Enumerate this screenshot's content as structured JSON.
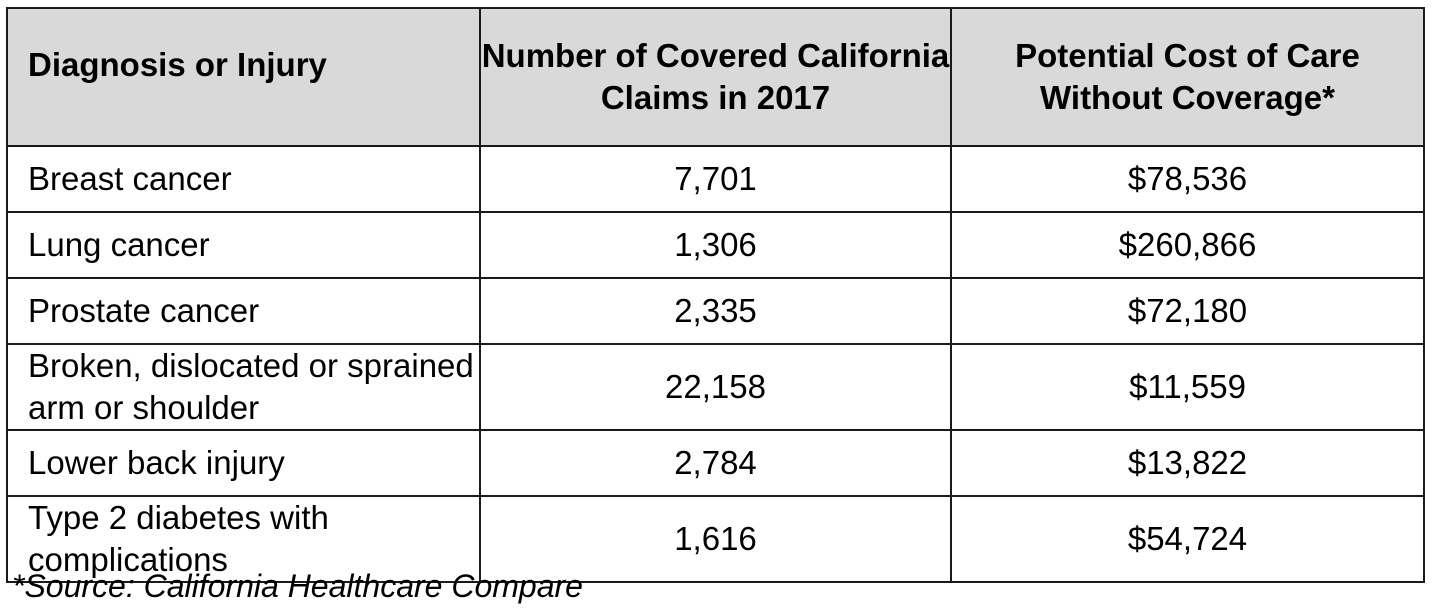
{
  "table": {
    "headers": {
      "diagnosis": "Diagnosis or Injury",
      "claims": "Number of Covered California Claims in 2017",
      "cost": "Potential Cost of Care Without Coverage*"
    },
    "rows": [
      {
        "diagnosis": "Breast cancer",
        "claims": "7,701",
        "cost": "$78,536"
      },
      {
        "diagnosis": "Lung cancer",
        "claims": "1,306",
        "cost": "$260,866"
      },
      {
        "diagnosis": "Prostate cancer",
        "claims": "2,335",
        "cost": "$72,180"
      },
      {
        "diagnosis": "Broken, dislocated or sprained arm or shoulder",
        "claims": "22,158",
        "cost": "$11,559"
      },
      {
        "diagnosis": "Lower back injury",
        "claims": "2,784",
        "cost": "$13,822"
      },
      {
        "diagnosis": "Type 2 diabetes with complications",
        "claims": "1,616",
        "cost": "$54,724"
      }
    ]
  },
  "footnote": "*Source: California Healthcare Compare",
  "colors": {
    "header_background": "#d9d9d9",
    "border": "#1a1a1a",
    "text": "#000000"
  }
}
